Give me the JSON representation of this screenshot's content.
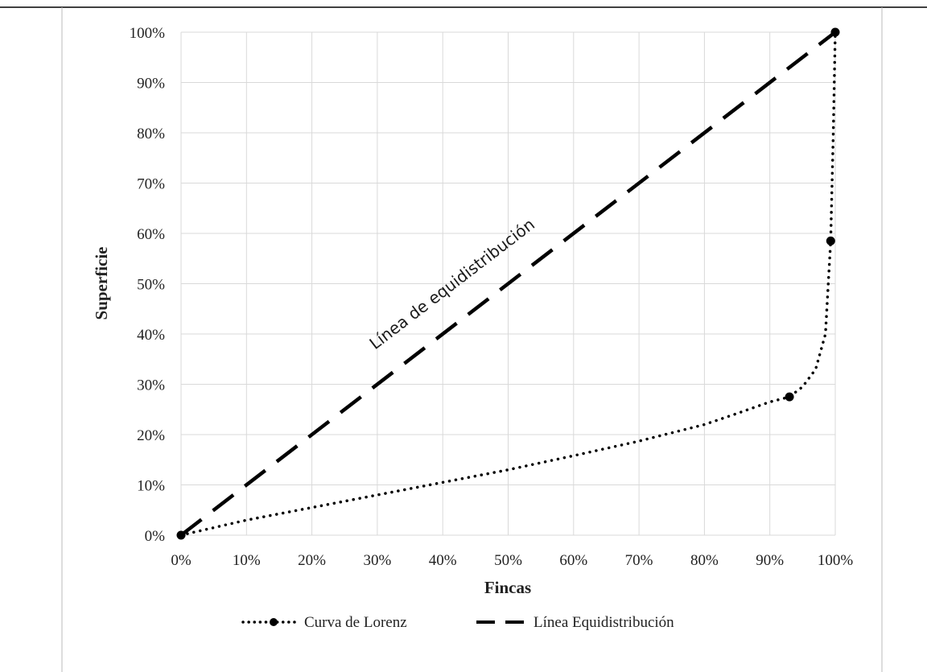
{
  "chart_data": {
    "type": "line",
    "title": "",
    "xlabel": "Fincas",
    "ylabel": "Superficie",
    "x_ticks": [
      "0%",
      "10%",
      "20%",
      "30%",
      "40%",
      "50%",
      "60%",
      "70%",
      "80%",
      "90%",
      "100%"
    ],
    "y_ticks": [
      "0%",
      "10%",
      "20%",
      "30%",
      "40%",
      "50%",
      "60%",
      "70%",
      "80%",
      "90%",
      "100%"
    ],
    "xlim": [
      0,
      100
    ],
    "ylim": [
      0,
      100
    ],
    "grid": true,
    "legend_position": "bottom",
    "annotation": "Línea de equidistribución",
    "series": [
      {
        "name": "Curva de Lorenz",
        "style": "dotted",
        "marker": "circle",
        "color": "#000000",
        "x": [
          0,
          10,
          20,
          30,
          40,
          50,
          60,
          70,
          80,
          85,
          90,
          93,
          95,
          97,
          98.5,
          99.3,
          99.7,
          100
        ],
        "y": [
          0,
          3,
          5.5,
          8,
          10.5,
          13,
          15.8,
          18.7,
          22,
          24.2,
          26.5,
          27.5,
          29.5,
          33,
          40,
          58.5,
          80,
          100
        ],
        "markers_x": [
          0,
          93,
          99.3,
          100
        ],
        "markers_y": [
          0,
          27.5,
          58.5,
          100
        ]
      },
      {
        "name": "Línea Equidistribución",
        "style": "dashed",
        "color": "#000000",
        "x": [
          0,
          100
        ],
        "y": [
          0,
          100
        ]
      }
    ]
  }
}
